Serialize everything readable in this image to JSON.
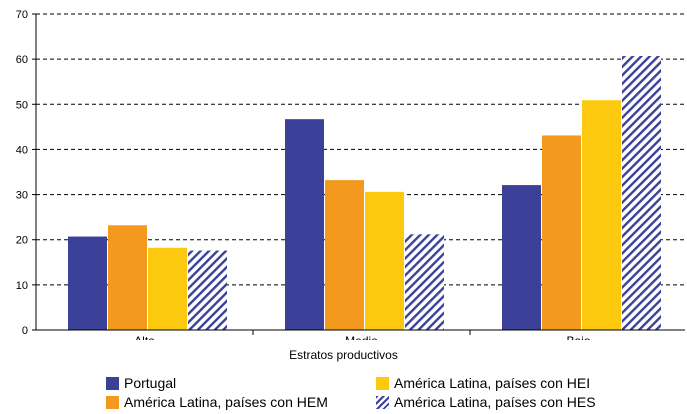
{
  "chart_data": {
    "type": "bar",
    "xlabel": "Estratos productivos",
    "ylabel": "",
    "ylim": [
      0,
      70
    ],
    "yticks": [
      0,
      10,
      20,
      30,
      40,
      50,
      60,
      70
    ],
    "grid": "horizontal dashed",
    "legend_position": "bottom",
    "categories": [
      "Alto",
      "Medio",
      "Bajo"
    ],
    "series": [
      {
        "name": "Portugal",
        "color": "#3b4199",
        "pattern": "solid",
        "values": [
          20.7,
          46.7,
          32.1
        ]
      },
      {
        "name": "América Latina, países con HEM",
        "color": "#f39a1e",
        "pattern": "solid",
        "values": [
          23.2,
          33.2,
          43.1
        ]
      },
      {
        "name": "América Latina, países con HEI",
        "color": "#fdc90f",
        "pattern": "solid",
        "values": [
          18.2,
          30.6,
          50.9
        ]
      },
      {
        "name": "América Latina, países con HES",
        "color": "#3b4199",
        "pattern": "hatch",
        "values": [
          17.6,
          21.2,
          60.7
        ]
      }
    ]
  }
}
